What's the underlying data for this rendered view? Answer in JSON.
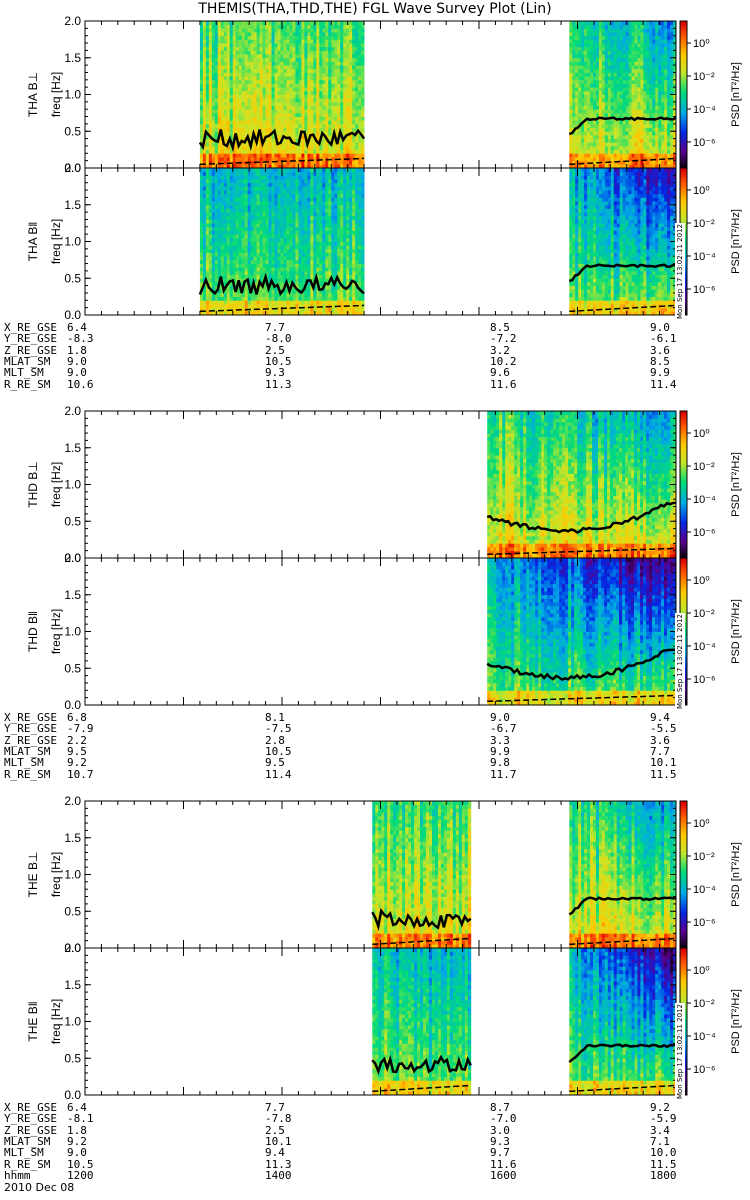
{
  "title": "THEMIS(THA,THD,THE) FGL Wave Survey Plot (Lin)",
  "date_label": "2010 Dec 08",
  "time_row_label": "hhmm",
  "stamp": "Mon Sep 17 13:02:11 2012",
  "colors": {
    "line": "#000000",
    "frame": "#000000"
  },
  "chart_data": [
    {
      "type": "heatmap",
      "probe": "THA",
      "panels": [
        {
          "ylabel_top": "THA B⊥",
          "ylabel_bottom": "freq [Hz]",
          "component": "perp"
        },
        {
          "ylabel_top": "THA B‖",
          "ylabel_bottom": "freq [Hz]",
          "component": "par"
        }
      ],
      "ylim": [
        0,
        2.0
      ],
      "yticks": [
        "0.0",
        "0.5",
        "1.0",
        "1.5",
        "2.0"
      ],
      "xlim": [
        "12:00",
        "18:00"
      ],
      "data_intervals": [
        [
          "13:10",
          "14:50"
        ],
        [
          "16:55",
          "18:00"
        ]
      ],
      "colorbar": {
        "label": "PSD [nT²/Hz]",
        "scale": "log",
        "ticks": [
          "10⁰",
          "10⁻²",
          "10⁻⁴",
          "10⁻⁶"
        ]
      },
      "orbit": {
        "labels": [
          "X_RE_GSE",
          "Y_RE_GSE",
          "Z_RE_GSE",
          "MLAT_SM",
          "MLT_SM",
          "R_RE_SM"
        ],
        "columns": [
          [
            "6.4",
            "-8.3",
            "1.8",
            "9.0",
            "9.0",
            "10.6"
          ],
          [
            "7.7",
            "-8.0",
            "2.5",
            "10.5",
            "9.3",
            "11.3"
          ],
          [
            "8.5",
            "-7.2",
            "3.2",
            "10.2",
            "9.6",
            "11.6"
          ],
          [
            "9.0",
            "-6.1",
            "3.6",
            "8.5",
            "9.9",
            "11.4"
          ]
        ]
      }
    },
    {
      "type": "heatmap",
      "probe": "THD",
      "panels": [
        {
          "ylabel_top": "THD B⊥",
          "ylabel_bottom": "freq [Hz]",
          "component": "perp"
        },
        {
          "ylabel_top": "THD B‖",
          "ylabel_bottom": "freq [Hz]",
          "component": "par"
        }
      ],
      "ylim": [
        0,
        2.0
      ],
      "yticks": [
        "0.0",
        "0.5",
        "1.0",
        "1.5",
        "2.0"
      ],
      "xlim": [
        "12:00",
        "18:00"
      ],
      "data_intervals": [
        [
          "16:05",
          "18:00"
        ]
      ],
      "colorbar": {
        "label": "PSD [nT²/Hz]",
        "scale": "log",
        "ticks": [
          "10⁰",
          "10⁻²",
          "10⁻⁴",
          "10⁻⁶"
        ]
      },
      "orbit": {
        "labels": [
          "X_RE_GSE",
          "Y_RE_GSE",
          "Z_RE_GSE",
          "MLAT_SM",
          "MLT_SM",
          "R_RE_SM"
        ],
        "columns": [
          [
            "6.8",
            "-7.9",
            "2.2",
            "9.5",
            "9.2",
            "10.7"
          ],
          [
            "8.1",
            "-7.5",
            "2.8",
            "10.5",
            "9.5",
            "11.4"
          ],
          [
            "9.0",
            "-6.7",
            "3.3",
            "9.9",
            "9.8",
            "11.7"
          ],
          [
            "9.4",
            "-5.5",
            "3.6",
            "7.7",
            "10.1",
            "11.5"
          ]
        ]
      }
    },
    {
      "type": "heatmap",
      "probe": "THE",
      "panels": [
        {
          "ylabel_top": "THE B⊥",
          "ylabel_bottom": "freq [Hz]",
          "component": "perp"
        },
        {
          "ylabel_top": "THE B‖",
          "ylabel_bottom": "freq [Hz]",
          "component": "par"
        }
      ],
      "ylim": [
        0,
        2.0
      ],
      "yticks": [
        "0.0",
        "0.5",
        "1.0",
        "1.5",
        "2.0"
      ],
      "xlim": [
        "12:00",
        "18:00"
      ],
      "data_intervals": [
        [
          "14:55",
          "15:55"
        ],
        [
          "16:55",
          "18:00"
        ]
      ],
      "colorbar": {
        "label": "PSD [nT²/Hz]",
        "scale": "log",
        "ticks": [
          "10⁰",
          "10⁻²",
          "10⁻⁴",
          "10⁻⁶"
        ]
      },
      "orbit": {
        "labels": [
          "X_RE_GSE",
          "Y_RE_GSE",
          "Z_RE_GSE",
          "MLAT_SM",
          "MLT_SM",
          "R_RE_SM"
        ],
        "columns": [
          [
            "6.4",
            "-8.1",
            "1.8",
            "9.2",
            "9.0",
            "10.5"
          ],
          [
            "7.7",
            "-7.8",
            "2.5",
            "10.1",
            "9.4",
            "11.3"
          ],
          [
            "8.7",
            "-7.0",
            "3.0",
            "9.3",
            "9.7",
            "11.6"
          ],
          [
            "9.2",
            "-5.9",
            "3.4",
            "7.1",
            "10.0",
            "11.5"
          ]
        ]
      }
    }
  ],
  "xticks": [
    "1200",
    "1400",
    "1600",
    "1800"
  ]
}
